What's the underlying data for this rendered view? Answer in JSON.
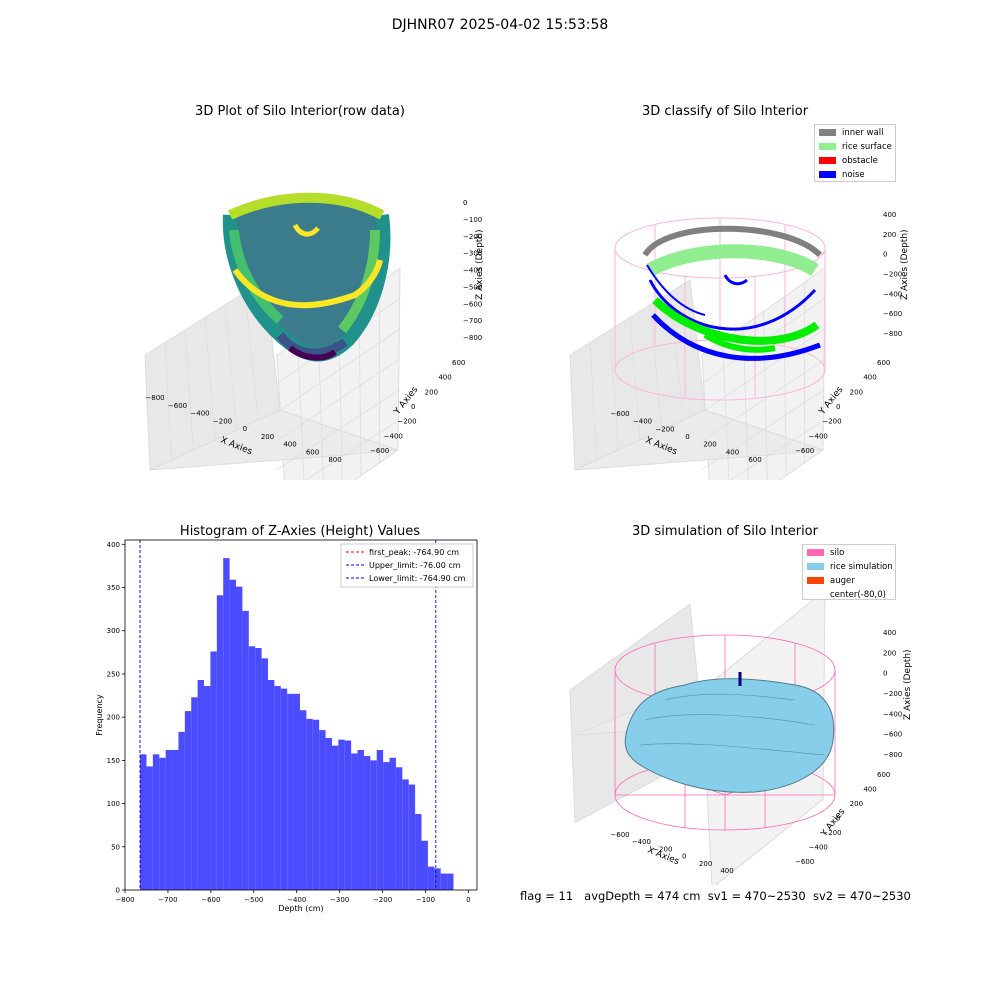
{
  "figure": {
    "suptitle": "DJHNR07 2025-04-02 15:53:58",
    "footer": {
      "flag": "flag = 11",
      "avg_depth": "avgDepth = 474 cm",
      "sv1": "sv1 = 470~2530",
      "sv2": "sv2 = 470~2530"
    }
  },
  "panels": {
    "raw": {
      "title": "3D Plot of Silo Interior(row data)",
      "x_label": "X Axies",
      "y_label": "Y Axies",
      "z_label": "Z Axies (Depth)",
      "x_ticks": [
        "−800",
        "−600",
        "−400",
        "−200",
        "0",
        "200",
        "400",
        "600",
        "800"
      ],
      "y_ticks": [
        "−600",
        "−400",
        "−200",
        "0",
        "200",
        "400",
        "600"
      ],
      "z_ticks": [
        "0",
        "−100",
        "−200",
        "−300",
        "−400",
        "−500",
        "−600",
        "−700",
        "−800"
      ],
      "colormap": "viridis"
    },
    "classify": {
      "title": "3D classify of Silo Interior",
      "x_label": "X Axies",
      "y_label": "Y Axies",
      "z_label": "Z Axies (Depth)",
      "x_ticks": [
        "−600",
        "−400",
        "−200",
        "0",
        "200",
        "400",
        "600"
      ],
      "y_ticks": [
        "−600",
        "−400",
        "−200",
        "0",
        "200",
        "400",
        "600"
      ],
      "z_ticks": [
        "400",
        "200",
        "0",
        "−200",
        "−400",
        "−600",
        "−800"
      ],
      "legend": [
        {
          "label": "inner wall",
          "color": "#808080"
        },
        {
          "label": "rice surface",
          "color": "#90ee90"
        },
        {
          "label": "obstacle",
          "color": "#ff0000"
        },
        {
          "label": "noise",
          "color": "#0000ff"
        }
      ]
    },
    "simulation": {
      "title": "3D simulation of Silo Interior",
      "x_label": "X Axies",
      "y_label": "Y Axies",
      "z_label": "Z Axies (Depth)",
      "x_ticks": [
        "−600",
        "−400",
        "−200",
        "0",
        "200",
        "400"
      ],
      "y_ticks": [
        "−600",
        "−400",
        "−200",
        "0",
        "200",
        "400",
        "600"
      ],
      "z_ticks": [
        "400",
        "200",
        "0",
        "−200",
        "−400",
        "−600",
        "−800"
      ],
      "legend": [
        {
          "label": "silo",
          "color": "#ff69b4"
        },
        {
          "label": "rice simulation",
          "color": "#87ceeb"
        },
        {
          "label": "auger",
          "color": "#ff4500"
        },
        {
          "label": "center(-80,0)",
          "color": ""
        }
      ]
    }
  },
  "chart_data": [
    {
      "type": "bar",
      "title": "Histogram of Z-Axies (Height) Values",
      "xlabel": "Depth (cm)",
      "ylabel": "Frequency",
      "xlim": [
        -800,
        20
      ],
      "ylim": [
        0,
        405
      ],
      "x_ticks": [
        -800,
        -700,
        -600,
        -500,
        -400,
        -300,
        -200,
        -100,
        0
      ],
      "y_ticks": [
        0,
        50,
        100,
        150,
        200,
        250,
        300,
        350,
        400
      ],
      "bar_color": "#4b4bff",
      "bin_start": -764.9,
      "bin_width": 14.9,
      "values": [
        157,
        143,
        157,
        153,
        162,
        162,
        183,
        207,
        223,
        243,
        236,
        276,
        341,
        384,
        359,
        351,
        323,
        282,
        280,
        268,
        243,
        236,
        233,
        227,
        227,
        208,
        198,
        197,
        185,
        176,
        167,
        174,
        173,
        158,
        162,
        155,
        150,
        162,
        148,
        153,
        142,
        128,
        122,
        88,
        57,
        27,
        25,
        19,
        19
      ],
      "lines": [
        {
          "label": "first_peak: -764.90 cm",
          "x": -764.9,
          "color": "#ff0000"
        },
        {
          "label": "Upper_limit: -76.00 cm",
          "x": -76.0,
          "color": "#0000ff"
        },
        {
          "label": "Lower_limit: -764.90 cm",
          "x": -764.9,
          "color": "#0000ff"
        }
      ],
      "legend_position": "top-right"
    }
  ]
}
